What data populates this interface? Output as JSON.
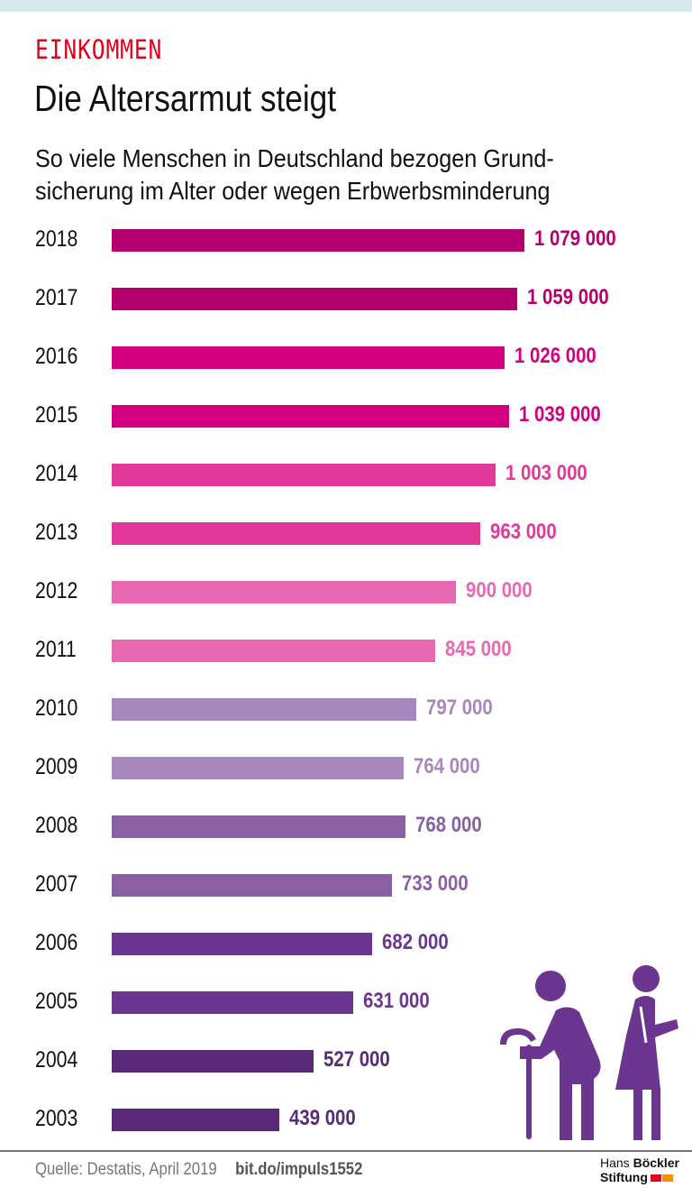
{
  "header": {
    "kicker": "EINKOMMEN",
    "title": "Die Altersarmut steigt",
    "subtitle_line1": "So viele Menschen in Deutschland bezogen Grund-",
    "subtitle_line2": "sicherung im Alter oder wegen Erbwerbsminderung"
  },
  "chart_data": {
    "type": "bar",
    "orientation": "horizontal",
    "title": "Die Altersarmut steigt",
    "categories": [
      "2018",
      "2017",
      "2016",
      "2015",
      "2014",
      "2013",
      "2012",
      "2011",
      "2010",
      "2009",
      "2008",
      "2007",
      "2006",
      "2005",
      "2004",
      "2003"
    ],
    "values": [
      1079000,
      1059000,
      1026000,
      1039000,
      1003000,
      963000,
      900000,
      845000,
      797000,
      764000,
      768000,
      733000,
      682000,
      631000,
      527000,
      439000
    ],
    "labels": [
      "1 079 000",
      "1 059 000",
      "1 026 000",
      "1 039 000",
      "1 003 000",
      "963 000",
      "900 000",
      "845 000",
      "797 000",
      "764 000",
      "768 000",
      "733 000",
      "682 000",
      "631 000",
      "527 000",
      "439 000"
    ],
    "colors": [
      "#b4006c",
      "#b4006c",
      "#d2007e",
      "#d2007e",
      "#e0399a",
      "#e0399a",
      "#e868b1",
      "#e868b1",
      "#a887bd",
      "#a887bd",
      "#8a5fa3",
      "#8a5fa3",
      "#6c3590",
      "#6c3590",
      "#592a78",
      "#592a78"
    ],
    "xlim": [
      0,
      1079000
    ],
    "grid": false
  },
  "footer": {
    "source": "Quelle: Destatis, April 2019",
    "link": "bit.do/impuls1552",
    "logo_line1a": "Hans",
    "logo_line1b": "Böckler",
    "logo_line2": "Stiftung"
  },
  "colors": {
    "figure": "#6c3590",
    "kicker": "#e2001a",
    "logo_red": "#e2001a",
    "logo_orange": "#f39200"
  }
}
